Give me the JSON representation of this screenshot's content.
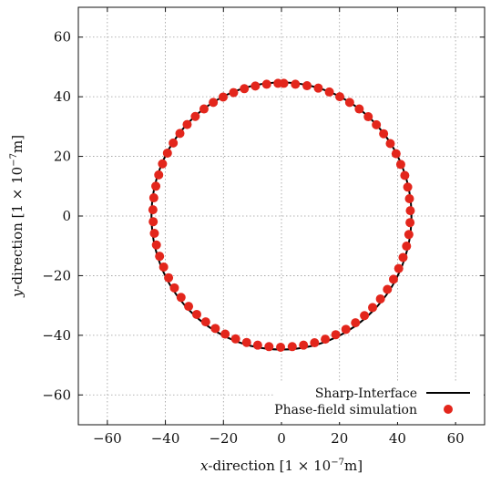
{
  "chart_data": {
    "type": "scatter",
    "title": "",
    "xlabel": {
      "pre": "x",
      "mid": "-direction [1 × 10",
      "exp": "−7",
      "post": "m]"
    },
    "ylabel": {
      "pre": "y",
      "mid": "-direction [1 × 10",
      "exp": "−7",
      "post": "m]"
    },
    "xlim": [
      -70,
      70
    ],
    "ylim": [
      -70,
      70
    ],
    "xticks": [
      -60,
      -40,
      -20,
      0,
      20,
      40,
      60
    ],
    "yticks": [
      -60,
      -40,
      -20,
      0,
      20,
      40,
      60
    ],
    "xtick_labels": [
      "−60",
      "−40",
      "−20",
      "0",
      "20",
      "40",
      "60"
    ],
    "ytick_labels": [
      "−60",
      "−40",
      "−20",
      "0",
      "20",
      "40",
      "60"
    ],
    "grid": true,
    "legend_position": "bottom-right",
    "series": [
      {
        "name": "Sharp-Interface",
        "kind": "line",
        "color": "#000000",
        "shape": "circle",
        "center": [
          0,
          0
        ],
        "radius": 44.8
      },
      {
        "name": "Phase-field simulation",
        "kind": "scatter",
        "color": "#e3261c",
        "points": [
          [
            0.8,
            44.5
          ],
          [
            4.8,
            44.2
          ],
          [
            8.8,
            43.7
          ],
          [
            12.7,
            42.9
          ],
          [
            16.5,
            41.6
          ],
          [
            20.1,
            40.0
          ],
          [
            23.5,
            38.1
          ],
          [
            26.8,
            35.9
          ],
          [
            29.9,
            33.3
          ],
          [
            32.7,
            30.6
          ],
          [
            35.2,
            27.6
          ],
          [
            37.5,
            24.3
          ],
          [
            39.5,
            20.9
          ],
          [
            41.1,
            17.3
          ],
          [
            42.5,
            13.6
          ],
          [
            43.5,
            9.7
          ],
          [
            44.1,
            5.8
          ],
          [
            44.4,
            1.8
          ],
          [
            44.3,
            -2.2
          ],
          [
            43.9,
            -6.2
          ],
          [
            43.1,
            -10.1
          ],
          [
            41.9,
            -13.9
          ],
          [
            40.4,
            -17.6
          ],
          [
            38.6,
            -21.2
          ],
          [
            36.5,
            -24.6
          ],
          [
            34.1,
            -27.8
          ],
          [
            31.4,
            -30.7
          ],
          [
            28.6,
            -33.4
          ],
          [
            25.5,
            -35.8
          ],
          [
            22.2,
            -38.0
          ],
          [
            18.7,
            -39.8
          ],
          [
            15.1,
            -41.3
          ],
          [
            11.4,
            -42.5
          ],
          [
            7.6,
            -43.3
          ],
          [
            3.7,
            -43.8
          ],
          [
            -0.3,
            -44.0
          ],
          [
            -4.3,
            -43.8
          ],
          [
            -8.2,
            -43.3
          ],
          [
            -12.0,
            -42.4
          ],
          [
            -15.8,
            -41.2
          ],
          [
            -19.4,
            -39.6
          ],
          [
            -22.8,
            -37.7
          ],
          [
            -26.1,
            -35.5
          ],
          [
            -29.2,
            -33.0
          ],
          [
            -32.0,
            -30.3
          ],
          [
            -34.6,
            -27.3
          ],
          [
            -36.9,
            -24.1
          ],
          [
            -38.9,
            -20.7
          ],
          [
            -40.6,
            -17.1
          ],
          [
            -42.0,
            -13.5
          ],
          [
            -43.1,
            -9.7
          ],
          [
            -43.8,
            -5.8
          ],
          [
            -44.2,
            -1.9
          ],
          [
            -44.3,
            2.1
          ],
          [
            -44.0,
            6.1
          ],
          [
            -43.3,
            10.0
          ],
          [
            -42.3,
            13.8
          ],
          [
            -41.0,
            17.5
          ],
          [
            -39.3,
            21.1
          ],
          [
            -37.3,
            24.5
          ],
          [
            -35.0,
            27.7
          ],
          [
            -32.5,
            30.7
          ],
          [
            -29.7,
            33.4
          ],
          [
            -26.7,
            35.9
          ],
          [
            -23.5,
            38.1
          ],
          [
            -20.1,
            39.9
          ],
          [
            -16.5,
            41.4
          ],
          [
            -12.8,
            42.7
          ],
          [
            -9.0,
            43.6
          ],
          [
            -5.1,
            44.2
          ],
          [
            -1.2,
            44.5
          ]
        ]
      }
    ]
  }
}
